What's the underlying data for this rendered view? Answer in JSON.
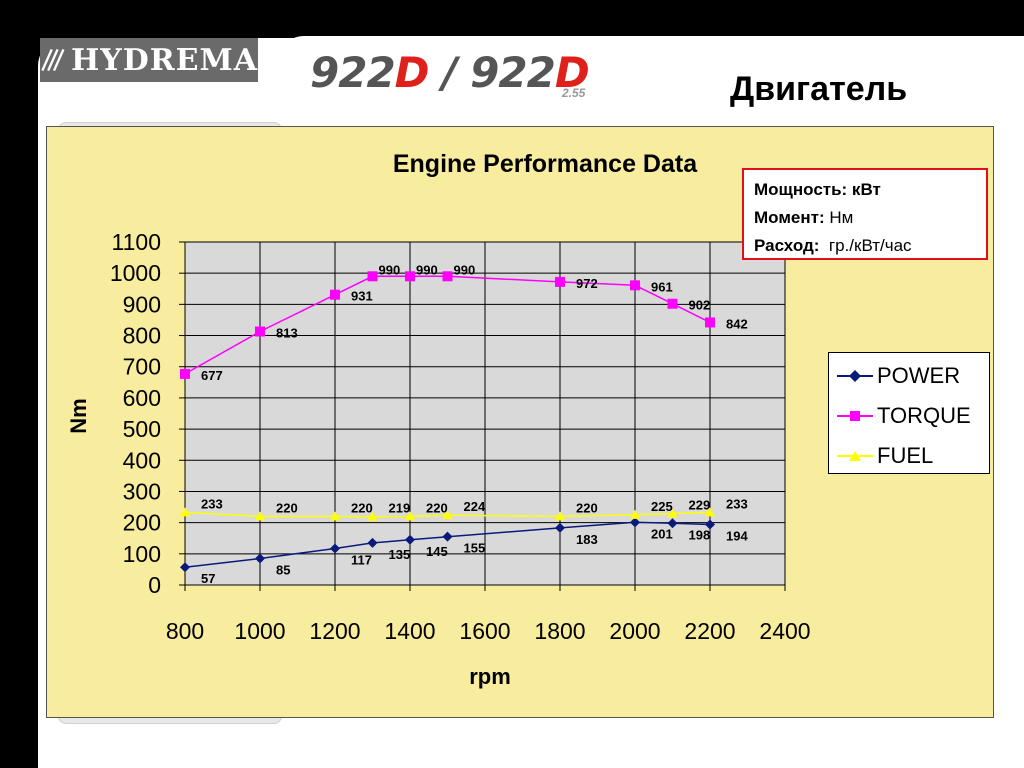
{
  "header": {
    "logo_text": "HYDREMA",
    "model_part1": "922",
    "model_d1": "D",
    "model_sep": " / ",
    "model_part2": "922",
    "model_d2": "D",
    "model_sub": "2.55",
    "slide_title": "Двигатель"
  },
  "units_box": {
    "power_label": "Мощность: кВт",
    "torque_label": "Момент:",
    "torque_unit": "Нм",
    "fuel_label": "Расход:",
    "fuel_unit": "гр./кВт/час"
  },
  "colors": {
    "plot_bg": "#d9d9d9",
    "chart_bg": "#f8ec9e",
    "power": "#0a1a7a",
    "torque": "#ff00ff",
    "fuel": "#ffff00"
  },
  "chart_data": {
    "type": "line",
    "title": "Engine Performance Data",
    "xlabel": "rpm",
    "ylabel": "Nm",
    "xlim": [
      800,
      2400
    ],
    "ylim": [
      0,
      1100
    ],
    "xticks": [
      800,
      1000,
      1200,
      1400,
      1600,
      1800,
      2000,
      2200,
      2400
    ],
    "yticks": [
      0,
      100,
      200,
      300,
      400,
      500,
      600,
      700,
      800,
      900,
      1000,
      1100
    ],
    "grid": true,
    "legend": "right",
    "series": [
      {
        "name": "POWER",
        "marker": "diamond",
        "x": [
          800,
          1000,
          1200,
          1300,
          1400,
          1500,
          1800,
          2000,
          2100,
          2200
        ],
        "y": [
          57,
          85,
          117,
          135,
          145,
          155,
          183,
          201,
          198,
          194
        ],
        "labels": [
          "57",
          "85",
          "117",
          "135",
          "145",
          "155",
          "183",
          "201",
          "198",
          "194"
        ]
      },
      {
        "name": "TORQUE",
        "marker": "square",
        "x": [
          800,
          1000,
          1200,
          1300,
          1400,
          1500,
          1800,
          2000,
          2100,
          2200
        ],
        "y": [
          677,
          813,
          931,
          990,
          990,
          990,
          972,
          961,
          902,
          842
        ],
        "labels": [
          "677",
          "813",
          "931",
          "990",
          "990",
          "990",
          "972",
          "961",
          "902",
          "842"
        ]
      },
      {
        "name": "FUEL",
        "marker": "triangle",
        "x": [
          800,
          1000,
          1200,
          1300,
          1400,
          1500,
          1800,
          2000,
          2100,
          2200
        ],
        "y": [
          233,
          220,
          220,
          219,
          220,
          224,
          220,
          225,
          229,
          233
        ],
        "labels": [
          "233",
          "220",
          "220",
          "219",
          "220",
          "224",
          "220",
          "225",
          "229",
          "233"
        ]
      }
    ]
  }
}
